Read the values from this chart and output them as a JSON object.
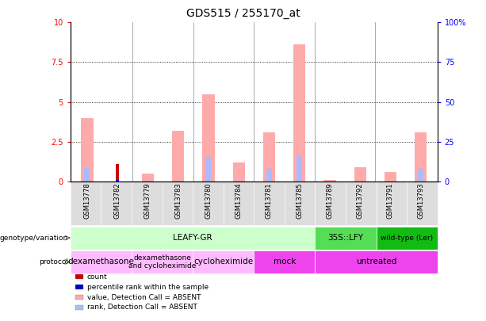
{
  "title": "GDS515 / 255170_at",
  "samples": [
    "GSM13778",
    "GSM13782",
    "GSM13779",
    "GSM13783",
    "GSM13780",
    "GSM13784",
    "GSM13781",
    "GSM13785",
    "GSM13789",
    "GSM13792",
    "GSM13791",
    "GSM13793"
  ],
  "pink_bars": [
    4.0,
    0.0,
    0.5,
    3.2,
    5.5,
    1.2,
    3.1,
    8.6,
    0.1,
    0.9,
    0.6,
    3.1
  ],
  "red_bars": [
    0.0,
    1.1,
    0.0,
    0.0,
    0.0,
    0.0,
    0.0,
    0.0,
    0.0,
    0.0,
    0.0,
    0.0
  ],
  "blue_bars": [
    0.0,
    0.1,
    0.0,
    0.0,
    0.0,
    0.0,
    0.0,
    0.0,
    0.0,
    0.0,
    0.0,
    0.0
  ],
  "light_blue_bars": [
    0.9,
    0.0,
    0.0,
    0.0,
    1.55,
    0.0,
    0.8,
    1.6,
    0.0,
    0.0,
    0.0,
    0.8
  ],
  "ylim": [
    0,
    10
  ],
  "yticks": [
    0,
    2.5,
    5.0,
    7.5,
    10
  ],
  "ytick_labels": [
    "0",
    "2.5",
    "5",
    "7.5",
    "10"
  ],
  "y2ticks": [
    0,
    25,
    50,
    75,
    100
  ],
  "y2tick_labels": [
    "0",
    "25",
    "50",
    "75",
    "100%"
  ],
  "genotype_groups": [
    {
      "label": "LEAFY-GR",
      "start": 0,
      "end": 8,
      "color": "#ccffcc"
    },
    {
      "label": "35S::LFY",
      "start": 8,
      "end": 10,
      "color": "#55dd55"
    },
    {
      "label": "wild-type (Ler)",
      "start": 10,
      "end": 12,
      "color": "#11bb11"
    }
  ],
  "protocol_groups": [
    {
      "label": "dexamethasone",
      "start": 0,
      "end": 2,
      "color": "#ffbbff"
    },
    {
      "label": "dexamethasone\nand cycloheximide",
      "start": 2,
      "end": 4,
      "color": "#ffbbff"
    },
    {
      "label": "cycloheximide",
      "start": 4,
      "end": 6,
      "color": "#ffbbff"
    },
    {
      "label": "mock",
      "start": 6,
      "end": 8,
      "color": "#ee44ee"
    },
    {
      "label": "untreated",
      "start": 8,
      "end": 12,
      "color": "#ee44ee"
    }
  ],
  "pink_color": "#ffaaaa",
  "red_color": "#cc0000",
  "blue_color": "#0000cc",
  "light_blue_color": "#aabbff",
  "genotype_label": "genotype/variation",
  "protocol_label": "protocol",
  "legend_items": [
    {
      "color": "#cc0000",
      "label": "count"
    },
    {
      "color": "#0000cc",
      "label": "percentile rank within the sample"
    },
    {
      "color": "#ffaaaa",
      "label": "value, Detection Call = ABSENT"
    },
    {
      "color": "#aabbff",
      "label": "rank, Detection Call = ABSENT"
    }
  ]
}
